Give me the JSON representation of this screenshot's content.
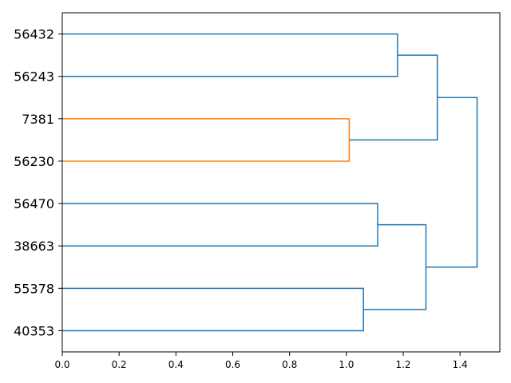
{
  "chart_data": {
    "type": "dendrogram",
    "orientation": "horizontal",
    "title": "",
    "xlabel": "",
    "ylabel": "",
    "xlim": [
      0,
      1.54
    ],
    "x_ticks": [
      0.0,
      0.2,
      0.4,
      0.6,
      0.8,
      1.0,
      1.2,
      1.4
    ],
    "x_tick_labels": [
      "0.0",
      "0.2",
      "0.4",
      "0.6",
      "0.8",
      "1.0",
      "1.2",
      "1.4"
    ],
    "leaves": [
      "56432",
      "56243",
      "7381",
      "56230",
      "56470",
      "38663",
      "55378",
      "40353"
    ],
    "merges": [
      {
        "left": "56432",
        "right": "56243",
        "distance": 1.18,
        "color": "#1f77b4"
      },
      {
        "left": "7381",
        "right": "56230",
        "distance": 1.01,
        "color": "#ff7f0e"
      },
      {
        "left": "56470",
        "right": "38663",
        "distance": 1.11,
        "color": "#1f77b4"
      },
      {
        "left": "55378",
        "right": "40353",
        "distance": 1.06,
        "color": "#1f77b4"
      },
      {
        "left": "56432+56243",
        "right": "7381+56230",
        "distance": 1.32,
        "color": "#1f77b4"
      },
      {
        "left": "56470+38663",
        "right": "55378+40353",
        "distance": 1.28,
        "color": "#1f77b4"
      },
      {
        "left": "56432+56243+7381+56230",
        "right": "56470+38663+55378+40353",
        "distance": 1.46,
        "color": "#1f77b4"
      }
    ],
    "grid": false
  }
}
